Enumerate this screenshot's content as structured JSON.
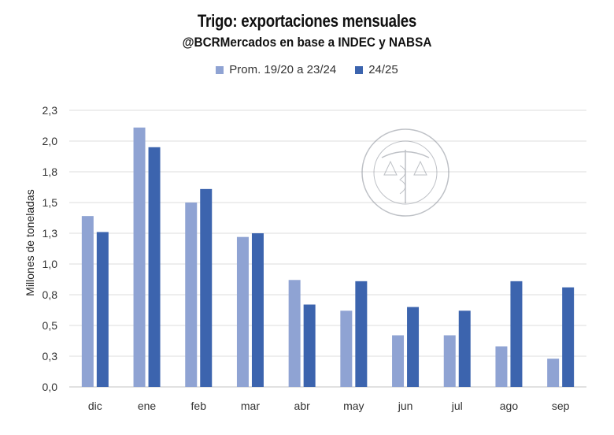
{
  "chart_data": {
    "type": "bar",
    "title": "Trigo: exportaciones mensuales",
    "subtitle": "@BCRMercados en base a INDEC y NABSA",
    "xlabel": "",
    "ylabel": "Millones de toneladas",
    "ylim": [
      0,
      2.25
    ],
    "yticks": [
      0,
      0.25,
      0.5,
      0.75,
      1.0,
      1.25,
      1.5,
      1.75,
      2.0,
      2.25
    ],
    "ytick_labels": [
      "0,0",
      "0,3",
      "0,5",
      "0,8",
      "1,0",
      "1,3",
      "1,5",
      "1,8",
      "2,0",
      "2,3"
    ],
    "grid": true,
    "legend_placement": "top-center",
    "categories": [
      "dic",
      "ene",
      "feb",
      "mar",
      "abr",
      "may",
      "jun",
      "jul",
      "ago",
      "sep"
    ],
    "series": [
      {
        "name": "Prom. 19/20 a 23/24",
        "color": "#8fa3d3",
        "values": [
          1.39,
          2.11,
          1.5,
          1.22,
          0.87,
          0.62,
          0.42,
          0.42,
          0.33,
          0.23
        ]
      },
      {
        "name": "24/25",
        "color": "#3c64ae",
        "values": [
          1.26,
          1.95,
          1.61,
          1.25,
          0.67,
          0.86,
          0.65,
          0.62,
          0.86,
          0.81
        ]
      }
    ],
    "watermark": "BOLSA DE COMERCIO DE ROSARIO"
  }
}
